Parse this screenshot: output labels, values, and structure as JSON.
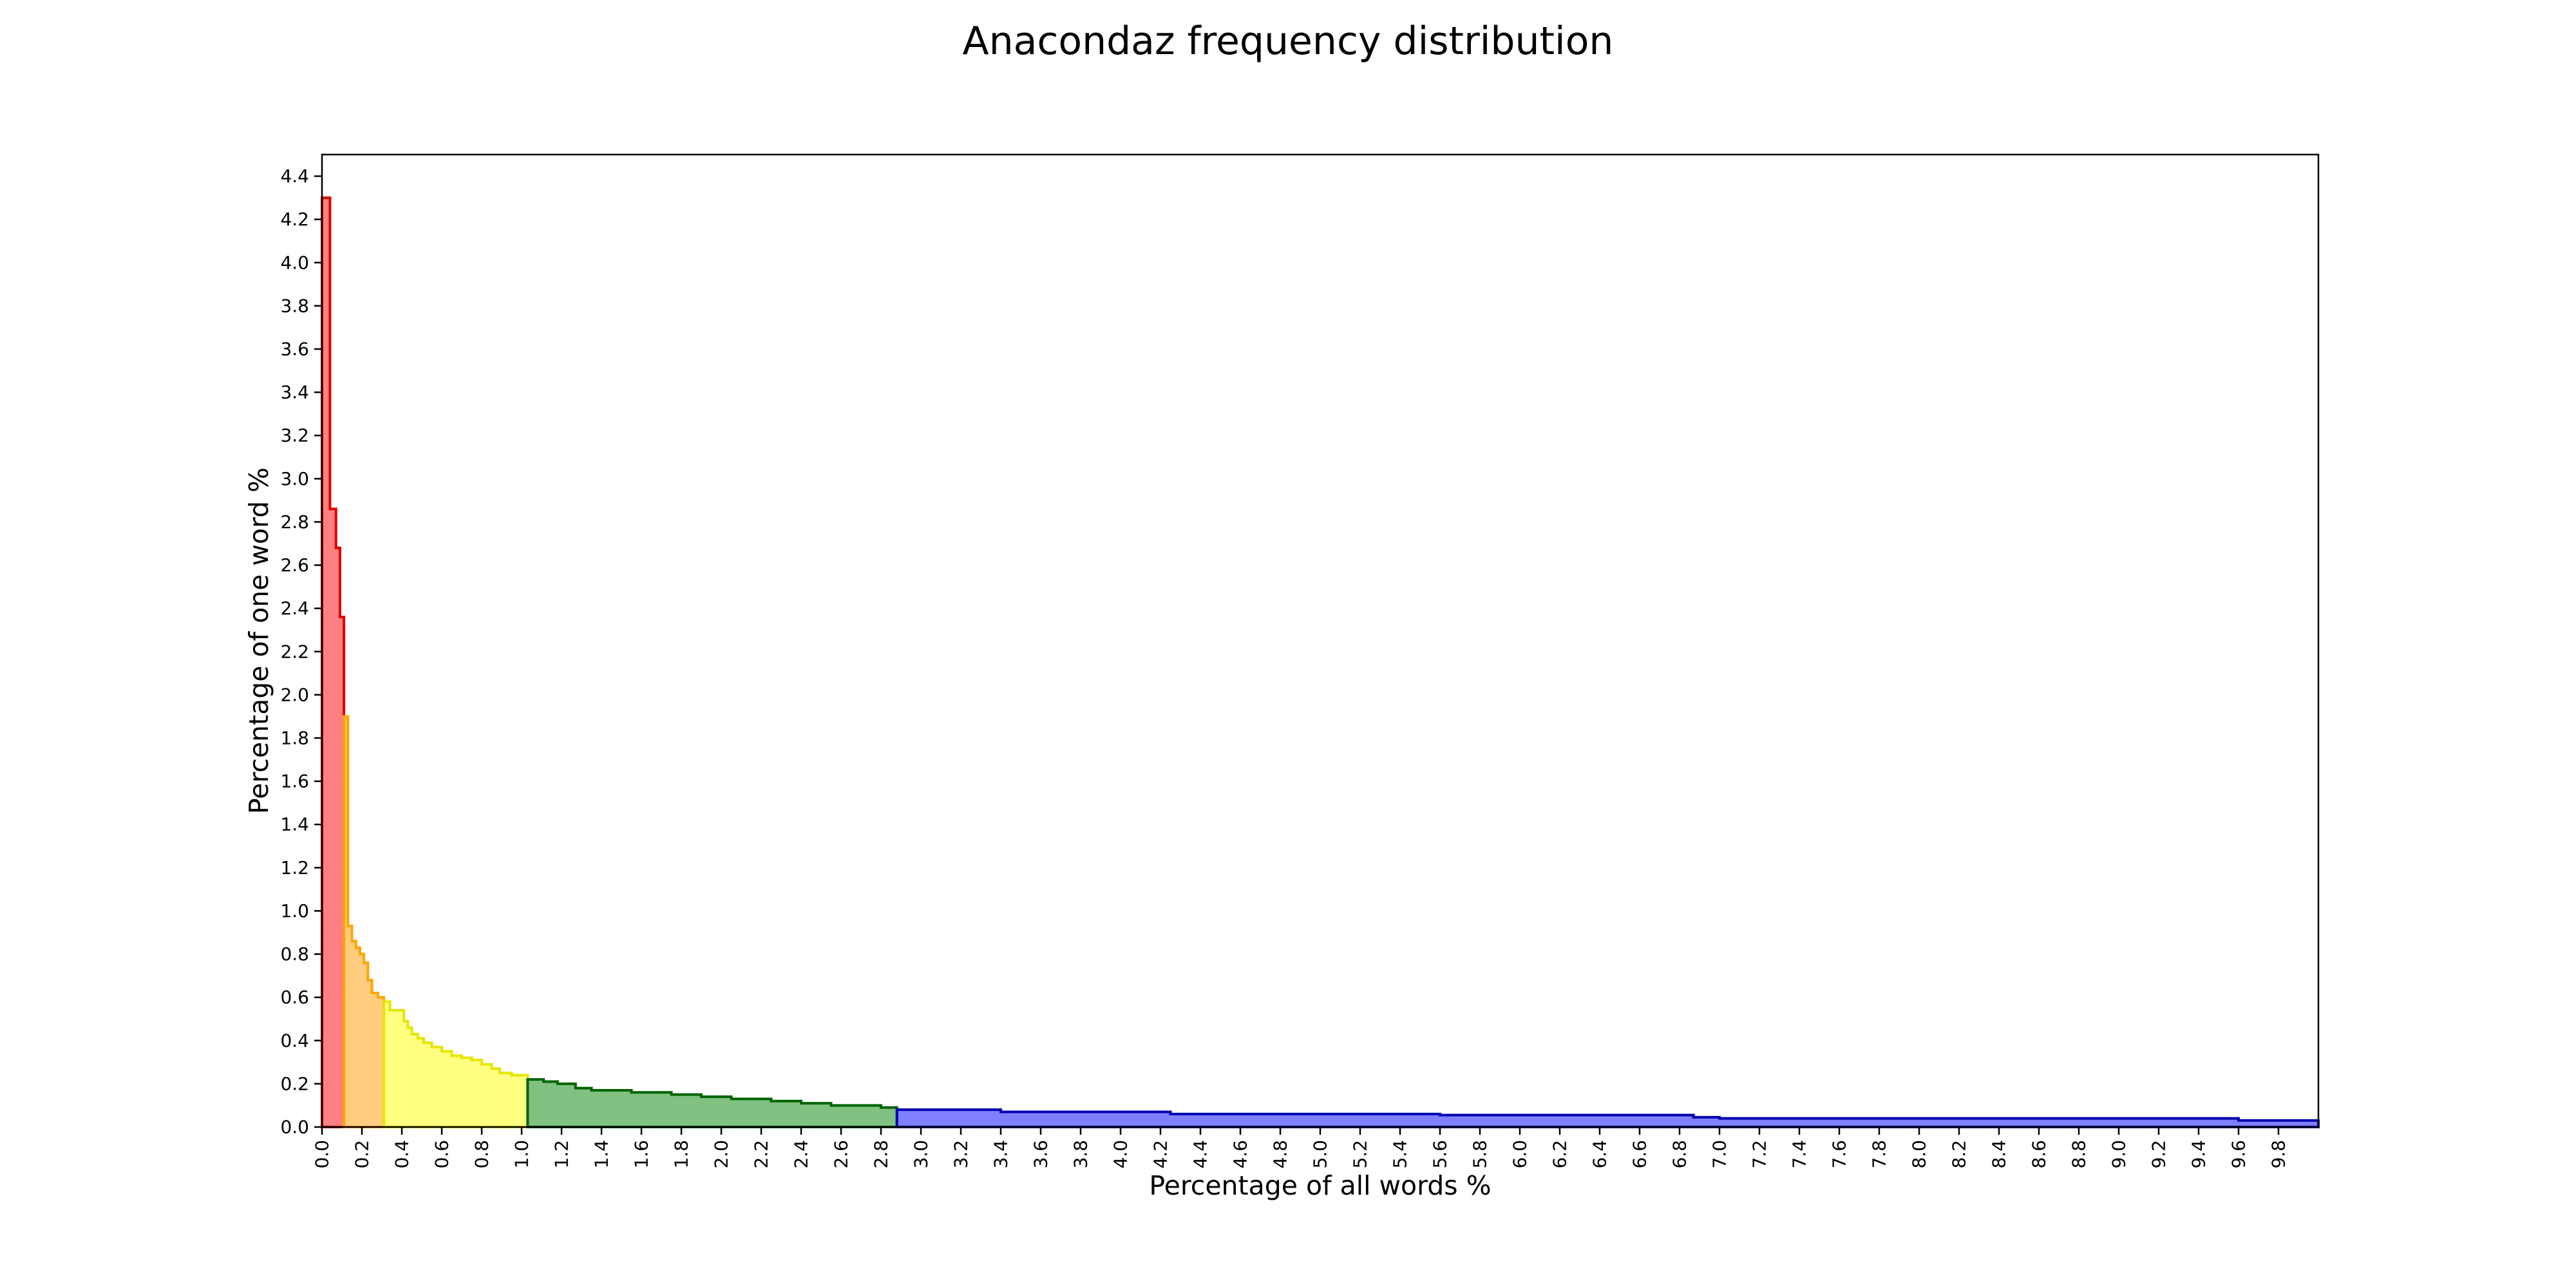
{
  "chart_data": {
    "type": "area",
    "title": "Anacondaz frequency distribution",
    "xlabel": "Percentage of all words %",
    "ylabel": "Percentage of one word %",
    "xlim": [
      0,
      10
    ],
    "ylim": [
      0,
      4.5
    ],
    "grid": false,
    "x_ticks": [
      0.0,
      0.2,
      0.4,
      0.6,
      0.8,
      1.0,
      1.2,
      1.4,
      1.6,
      1.8,
      2.0,
      2.2,
      2.4,
      2.6,
      2.8,
      3.0,
      3.2,
      3.4,
      3.6,
      3.8,
      4.0,
      4.2,
      4.4,
      4.6,
      4.8,
      5.0,
      5.2,
      5.4,
      5.6,
      5.8,
      6.0,
      6.2,
      6.4,
      6.6,
      6.8,
      7.0,
      7.2,
      7.4,
      7.6,
      7.8,
      8.0,
      8.2,
      8.4,
      8.6,
      8.8,
      9.0,
      9.2,
      9.4,
      9.6,
      9.8
    ],
    "x_tick_labels": [
      "0.0",
      "0.2",
      "0.4",
      "0.6",
      "0.8",
      "1.0",
      "1.2",
      "1.4",
      "1.6",
      "1.8",
      "2.0",
      "2.2",
      "2.4",
      "2.6",
      "2.8",
      "3.0",
      "3.2",
      "3.4",
      "3.6",
      "3.8",
      "4.0",
      "4.2",
      "4.4",
      "4.6",
      "4.8",
      "5.0",
      "5.2",
      "5.4",
      "5.6",
      "5.8",
      "6.0",
      "6.2",
      "6.4",
      "6.6",
      "6.8",
      "7.0",
      "7.2",
      "7.4",
      "7.6",
      "7.8",
      "8.0",
      "8.2",
      "8.4",
      "8.6",
      "8.8",
      "9.0",
      "9.2",
      "9.4",
      "9.6",
      "9.8"
    ],
    "y_ticks": [
      0.0,
      0.2,
      0.4,
      0.6,
      0.8,
      1.0,
      1.2,
      1.4,
      1.6,
      1.8,
      2.0,
      2.2,
      2.4,
      2.6,
      2.8,
      3.0,
      3.2,
      3.4,
      3.6,
      3.8,
      4.0,
      4.2,
      4.4
    ],
    "y_tick_labels": [
      "0.0",
      "0.2",
      "0.4",
      "0.6",
      "0.8",
      "1.0",
      "1.2",
      "1.4",
      "1.6",
      "1.8",
      "2.0",
      "2.2",
      "2.4",
      "2.6",
      "2.8",
      "3.0",
      "3.2",
      "3.4",
      "3.6",
      "3.8",
      "4.0",
      "4.2",
      "4.4"
    ],
    "series": [
      {
        "name": "red",
        "fill": "#ff8080",
        "stroke": "#e00000",
        "steps": [
          [
            0.0,
            4.3
          ],
          [
            0.04,
            2.86
          ],
          [
            0.07,
            2.68
          ],
          [
            0.09,
            2.36
          ],
          [
            0.11,
            1.9
          ]
        ],
        "x_end": 0.11
      },
      {
        "name": "orange",
        "fill": "#ffcc80",
        "stroke": "#ffa500",
        "steps": [
          [
            0.11,
            1.9
          ],
          [
            0.13,
            0.93
          ],
          [
            0.15,
            0.86
          ],
          [
            0.17,
            0.83
          ],
          [
            0.19,
            0.8
          ],
          [
            0.21,
            0.76
          ],
          [
            0.23,
            0.68
          ],
          [
            0.25,
            0.62
          ],
          [
            0.28,
            0.6
          ]
        ],
        "x_end": 0.31
      },
      {
        "name": "yellow",
        "fill": "#ffff80",
        "stroke": "#e6e600",
        "steps": [
          [
            0.31,
            0.58
          ],
          [
            0.34,
            0.54
          ],
          [
            0.41,
            0.49
          ],
          [
            0.43,
            0.46
          ],
          [
            0.45,
            0.43
          ],
          [
            0.48,
            0.41
          ],
          [
            0.51,
            0.39
          ],
          [
            0.55,
            0.37
          ],
          [
            0.6,
            0.35
          ],
          [
            0.65,
            0.33
          ],
          [
            0.7,
            0.32
          ],
          [
            0.75,
            0.31
          ],
          [
            0.8,
            0.29
          ],
          [
            0.85,
            0.27
          ],
          [
            0.89,
            0.25
          ],
          [
            0.95,
            0.24
          ]
        ],
        "x_end": 1.03
      },
      {
        "name": "green",
        "fill": "#80c080",
        "stroke": "#006400",
        "steps": [
          [
            1.03,
            0.22
          ],
          [
            1.11,
            0.21
          ],
          [
            1.18,
            0.2
          ],
          [
            1.27,
            0.18
          ],
          [
            1.35,
            0.17
          ],
          [
            1.55,
            0.16
          ],
          [
            1.75,
            0.15
          ],
          [
            1.9,
            0.14
          ],
          [
            2.05,
            0.13
          ],
          [
            2.25,
            0.12
          ],
          [
            2.4,
            0.11
          ],
          [
            2.55,
            0.1
          ],
          [
            2.8,
            0.09
          ]
        ],
        "x_end": 2.88
      },
      {
        "name": "blue",
        "fill": "#8080ff",
        "stroke": "#0000b0",
        "steps": [
          [
            2.88,
            0.08
          ],
          [
            3.4,
            0.07
          ],
          [
            4.25,
            0.06
          ],
          [
            5.6,
            0.055
          ],
          [
            6.87,
            0.045
          ],
          [
            7.0,
            0.04
          ],
          [
            9.6,
            0.03
          ]
        ],
        "x_end": 10.0
      }
    ]
  }
}
